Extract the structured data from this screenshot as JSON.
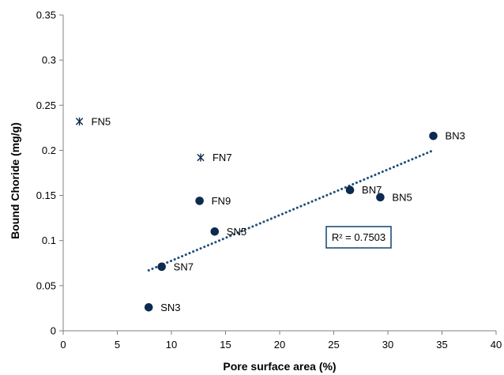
{
  "chart_data": {
    "type": "scatter",
    "title": "",
    "xlabel": "Pore surface area (%)",
    "ylabel": "Bound Choride (mg/g)",
    "xlim": [
      0,
      40
    ],
    "ylim": [
      0,
      0.35
    ],
    "x_ticks": [
      "0",
      "5",
      "10",
      "15",
      "20",
      "25",
      "30",
      "35",
      "40"
    ],
    "y_ticks": [
      "0",
      "0.05",
      "0.1",
      "0.15",
      "0.2",
      "0.25",
      "0.3",
      "0.35"
    ],
    "grid": false,
    "series": [
      {
        "marker": "circle",
        "color": "#0d2a4f",
        "points": [
          {
            "label": "SN3",
            "x": 7.9,
            "y": 0.026
          },
          {
            "label": "SN7",
            "x": 9.1,
            "y": 0.071
          },
          {
            "label": "SN5",
            "x": 14.0,
            "y": 0.11
          },
          {
            "label": "FN9",
            "x": 12.6,
            "y": 0.144
          },
          {
            "label": "BN7",
            "x": 26.5,
            "y": 0.156
          },
          {
            "label": "BN5",
            "x": 29.3,
            "y": 0.148
          },
          {
            "label": "BN3",
            "x": 34.2,
            "y": 0.216
          }
        ]
      },
      {
        "marker": "asterisk",
        "color": "#0d2a4f",
        "points": [
          {
            "label": "FN5",
            "x": 1.5,
            "y": 0.232
          },
          {
            "label": "FN7",
            "x": 12.7,
            "y": 0.192
          }
        ]
      }
    ],
    "trendline": {
      "style": "dotted",
      "color": "#1f4e79",
      "x_start": 7.9,
      "x_end": 34.2,
      "y_start": 0.067,
      "y_end": 0.2
    },
    "annotation": {
      "text": "R² = 0.7503"
    }
  }
}
